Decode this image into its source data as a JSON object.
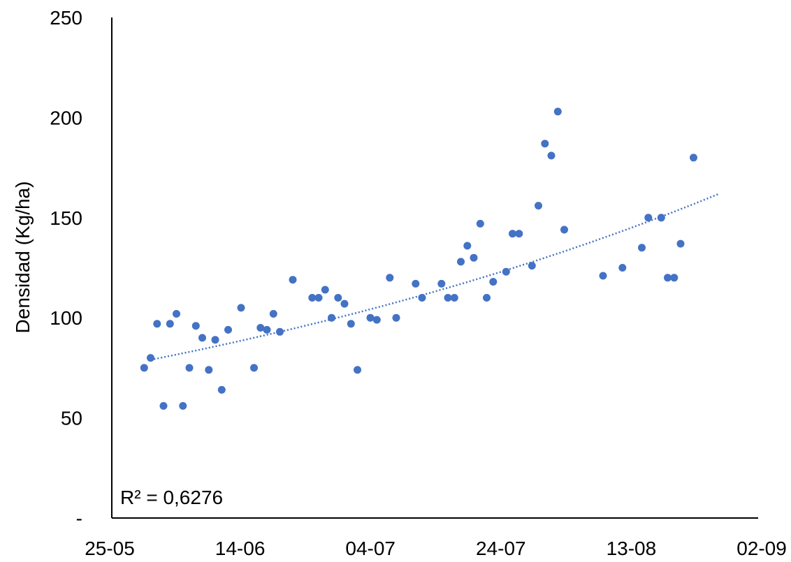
{
  "chart_data": {
    "type": "scatter",
    "ylabel": "Densidad (Kg/ha)",
    "x_ticks": [
      "25-05",
      "14-06",
      "04-07",
      "24-07",
      "13-08",
      "02-09"
    ],
    "y_ticks": [
      "-",
      "50",
      "100",
      "150",
      "200",
      "250"
    ],
    "ylim": [
      0,
      250
    ],
    "xlim": [
      "2023-05-25",
      "2023-09-02"
    ],
    "grid": false,
    "trendline": {
      "type": "exponential",
      "style": "dotted",
      "color": "#4472C4",
      "from": {
        "x": "2023-05-31",
        "y": 79
      },
      "to": {
        "x": "2023-08-27",
        "y": 162
      }
    },
    "r2_label": "R² = 0,6276",
    "marker_color": "#4472C4",
    "points": [
      {
        "x": "2023-05-30",
        "y": 75
      },
      {
        "x": "2023-05-31",
        "y": 80
      },
      {
        "x": "2023-06-01",
        "y": 97
      },
      {
        "x": "2023-06-02",
        "y": 56
      },
      {
        "x": "2023-06-03",
        "y": 97
      },
      {
        "x": "2023-06-04",
        "y": 102
      },
      {
        "x": "2023-06-05",
        "y": 56
      },
      {
        "x": "2023-06-06",
        "y": 75
      },
      {
        "x": "2023-06-07",
        "y": 96
      },
      {
        "x": "2023-06-08",
        "y": 90
      },
      {
        "x": "2023-06-09",
        "y": 74
      },
      {
        "x": "2023-06-10",
        "y": 89
      },
      {
        "x": "2023-06-11",
        "y": 64
      },
      {
        "x": "2023-06-12",
        "y": 94
      },
      {
        "x": "2023-06-14",
        "y": 105
      },
      {
        "x": "2023-06-16",
        "y": 75
      },
      {
        "x": "2023-06-17",
        "y": 95
      },
      {
        "x": "2023-06-18",
        "y": 94
      },
      {
        "x": "2023-06-19",
        "y": 102
      },
      {
        "x": "2023-06-20",
        "y": 93
      },
      {
        "x": "2023-06-22",
        "y": 119
      },
      {
        "x": "2023-06-25",
        "y": 110
      },
      {
        "x": "2023-06-26",
        "y": 110
      },
      {
        "x": "2023-06-27",
        "y": 114
      },
      {
        "x": "2023-06-28",
        "y": 100
      },
      {
        "x": "2023-06-29",
        "y": 110
      },
      {
        "x": "2023-06-30",
        "y": 107
      },
      {
        "x": "2023-07-01",
        "y": 97
      },
      {
        "x": "2023-07-02",
        "y": 74
      },
      {
        "x": "2023-07-04",
        "y": 100
      },
      {
        "x": "2023-07-05",
        "y": 99
      },
      {
        "x": "2023-07-07",
        "y": 120
      },
      {
        "x": "2023-07-08",
        "y": 100
      },
      {
        "x": "2023-07-11",
        "y": 117
      },
      {
        "x": "2023-07-12",
        "y": 110
      },
      {
        "x": "2023-07-15",
        "y": 117
      },
      {
        "x": "2023-07-16",
        "y": 110
      },
      {
        "x": "2023-07-17",
        "y": 110
      },
      {
        "x": "2023-07-18",
        "y": 128
      },
      {
        "x": "2023-07-19",
        "y": 136
      },
      {
        "x": "2023-07-20",
        "y": 130
      },
      {
        "x": "2023-07-21",
        "y": 147
      },
      {
        "x": "2023-07-22",
        "y": 110
      },
      {
        "x": "2023-07-23",
        "y": 118
      },
      {
        "x": "2023-07-25",
        "y": 123
      },
      {
        "x": "2023-07-26",
        "y": 142
      },
      {
        "x": "2023-07-27",
        "y": 142
      },
      {
        "x": "2023-07-29",
        "y": 126
      },
      {
        "x": "2023-07-30",
        "y": 156
      },
      {
        "x": "2023-07-31",
        "y": 187
      },
      {
        "x": "2023-08-01",
        "y": 181
      },
      {
        "x": "2023-08-02",
        "y": 203
      },
      {
        "x": "2023-08-03",
        "y": 144
      },
      {
        "x": "2023-08-09",
        "y": 121
      },
      {
        "x": "2023-08-12",
        "y": 125
      },
      {
        "x": "2023-08-15",
        "y": 135
      },
      {
        "x": "2023-08-16",
        "y": 150
      },
      {
        "x": "2023-08-18",
        "y": 150
      },
      {
        "x": "2023-08-19",
        "y": 120
      },
      {
        "x": "2023-08-20",
        "y": 120
      },
      {
        "x": "2023-08-21",
        "y": 137
      },
      {
        "x": "2023-08-23",
        "y": 180
      }
    ]
  }
}
